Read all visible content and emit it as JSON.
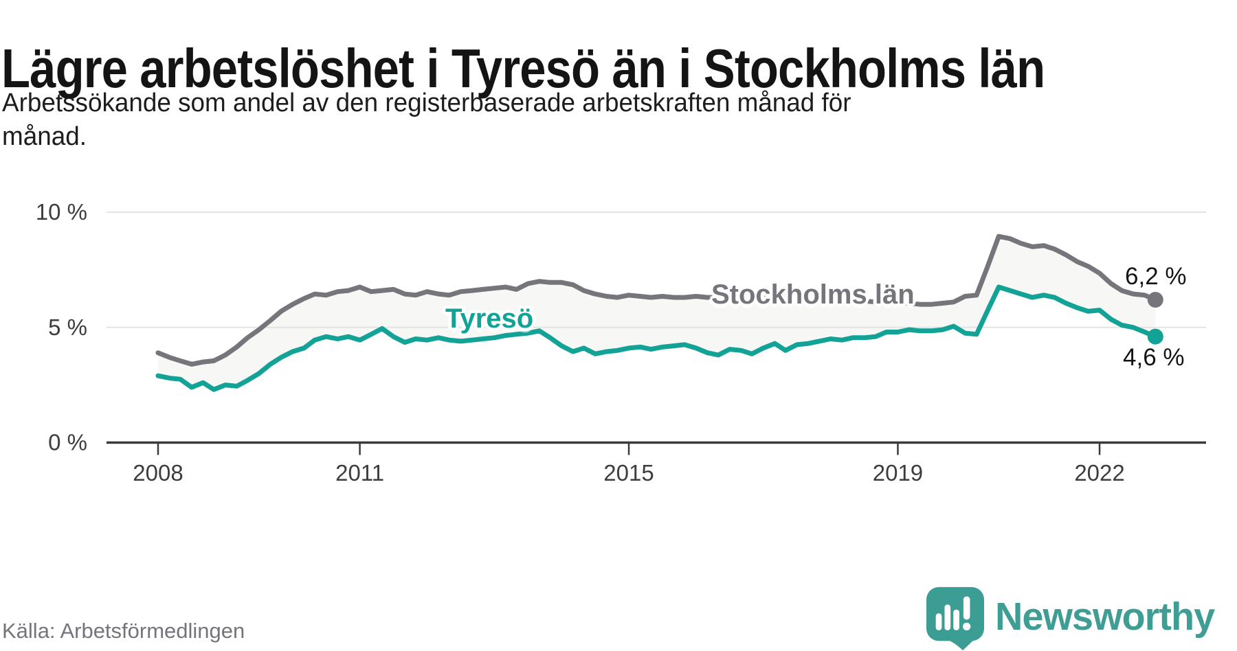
{
  "header": {
    "title": "Lägre arbetslöshet i Tyresö än i Stockholms län",
    "subtitle_lines": [
      "Arbetssökande som andel av den registerbaserade arbetskraften månad för",
      "månad."
    ]
  },
  "footer": {
    "source": "Källa: Arbetsförmedlingen",
    "brand": "Newsworthy",
    "logo_icon": "speech-bubble-bar-chart-exclamation"
  },
  "colors": {
    "tyreso_teal": "#12A296",
    "stockholm_gray": "#76757B",
    "axis": "#3A3A3A",
    "gridline": "#E4E4E4",
    "band_fill": "#F7F7F5",
    "logo_teal": "#3C9D94",
    "text_dark": "#141414",
    "source_gray": "#75747C"
  },
  "chart_data": {
    "type": "line",
    "title": "Lägre arbetslöshet i Tyresö än i Stockholms län",
    "subtitle": "Arbetssökande som andel av den registerbaserade arbetskraften månad för månad.",
    "xlabel": "",
    "ylabel": "",
    "x_unit": "decimal_year",
    "y_unit": "percent",
    "x_range": [
      2008.0,
      2022.92
    ],
    "y_range": [
      0,
      10.5
    ],
    "grid": true,
    "legend_position": "inline-on-line",
    "band_fill": "#F7F7F5",
    "x_ticks": [
      {
        "year": 2008,
        "label": "2008"
      },
      {
        "year": 2011,
        "label": "2011"
      },
      {
        "year": 2015,
        "label": "2015"
      },
      {
        "year": 2019,
        "label": "2019"
      },
      {
        "year": 2022,
        "label": "2022"
      }
    ],
    "y_ticks": [
      {
        "value": 0,
        "label": "0 %"
      },
      {
        "value": 5,
        "label": "5 %"
      },
      {
        "value": 10,
        "label": "10 %"
      }
    ],
    "series": [
      {
        "name": "Stockholms län",
        "color": "#76757B",
        "end_label": "6,2 %",
        "end_value": 6.2,
        "points": [
          [
            2008.0,
            3.9
          ],
          [
            2008.17,
            3.7
          ],
          [
            2008.33,
            3.55
          ],
          [
            2008.5,
            3.4
          ],
          [
            2008.67,
            3.5
          ],
          [
            2008.83,
            3.55
          ],
          [
            2009.0,
            3.8
          ],
          [
            2009.17,
            4.15
          ],
          [
            2009.33,
            4.55
          ],
          [
            2009.5,
            4.9
          ],
          [
            2009.67,
            5.3
          ],
          [
            2009.83,
            5.7
          ],
          [
            2010.0,
            6.0
          ],
          [
            2010.17,
            6.25
          ],
          [
            2010.33,
            6.45
          ],
          [
            2010.5,
            6.4
          ],
          [
            2010.67,
            6.55
          ],
          [
            2010.83,
            6.6
          ],
          [
            2011.0,
            6.75
          ],
          [
            2011.17,
            6.55
          ],
          [
            2011.33,
            6.6
          ],
          [
            2011.5,
            6.65
          ],
          [
            2011.67,
            6.45
          ],
          [
            2011.83,
            6.4
          ],
          [
            2012.0,
            6.55
          ],
          [
            2012.17,
            6.45
          ],
          [
            2012.33,
            6.4
          ],
          [
            2012.5,
            6.55
          ],
          [
            2012.67,
            6.6
          ],
          [
            2012.83,
            6.65
          ],
          [
            2013.0,
            6.7
          ],
          [
            2013.17,
            6.75
          ],
          [
            2013.33,
            6.65
          ],
          [
            2013.5,
            6.9
          ],
          [
            2013.67,
            7.0
          ],
          [
            2013.83,
            6.95
          ],
          [
            2014.0,
            6.95
          ],
          [
            2014.17,
            6.85
          ],
          [
            2014.33,
            6.6
          ],
          [
            2014.5,
            6.45
          ],
          [
            2014.67,
            6.35
          ],
          [
            2014.83,
            6.3
          ],
          [
            2015.0,
            6.4
          ],
          [
            2015.17,
            6.35
          ],
          [
            2015.33,
            6.3
          ],
          [
            2015.5,
            6.35
          ],
          [
            2015.67,
            6.3
          ],
          [
            2015.83,
            6.3
          ],
          [
            2016.0,
            6.35
          ],
          [
            2016.17,
            6.3
          ],
          [
            2016.33,
            6.3
          ],
          [
            2016.5,
            6.35
          ],
          [
            2016.67,
            6.3
          ],
          [
            2016.83,
            6.25
          ],
          [
            2017.0,
            6.3
          ],
          [
            2017.17,
            6.25
          ],
          [
            2017.33,
            6.2
          ],
          [
            2017.5,
            6.25
          ],
          [
            2017.67,
            6.3
          ],
          [
            2017.83,
            6.25
          ],
          [
            2018.0,
            6.2
          ],
          [
            2018.17,
            6.15
          ],
          [
            2018.33,
            6.1
          ],
          [
            2018.5,
            6.15
          ],
          [
            2018.67,
            6.1
          ],
          [
            2018.83,
            6.05
          ],
          [
            2019.0,
            6.1
          ],
          [
            2019.17,
            6.05
          ],
          [
            2019.33,
            6.0
          ],
          [
            2019.5,
            6.0
          ],
          [
            2019.67,
            6.05
          ],
          [
            2019.83,
            6.1
          ],
          [
            2020.0,
            6.35
          ],
          [
            2020.17,
            6.4
          ],
          [
            2020.33,
            7.6
          ],
          [
            2020.5,
            8.95
          ],
          [
            2020.67,
            8.85
          ],
          [
            2020.83,
            8.65
          ],
          [
            2021.0,
            8.5
          ],
          [
            2021.17,
            8.55
          ],
          [
            2021.33,
            8.4
          ],
          [
            2021.5,
            8.15
          ],
          [
            2021.67,
            7.85
          ],
          [
            2021.83,
            7.65
          ],
          [
            2022.0,
            7.35
          ],
          [
            2022.17,
            6.9
          ],
          [
            2022.33,
            6.6
          ],
          [
            2022.5,
            6.45
          ],
          [
            2022.67,
            6.4
          ],
          [
            2022.83,
            6.2
          ]
        ]
      },
      {
        "name": "Tyresö",
        "color": "#12A296",
        "end_label": "4,6 %",
        "end_value": 4.6,
        "points": [
          [
            2008.0,
            2.9
          ],
          [
            2008.17,
            2.8
          ],
          [
            2008.33,
            2.75
          ],
          [
            2008.5,
            2.4
          ],
          [
            2008.67,
            2.6
          ],
          [
            2008.83,
            2.3
          ],
          [
            2009.0,
            2.5
          ],
          [
            2009.17,
            2.45
          ],
          [
            2009.33,
            2.7
          ],
          [
            2009.5,
            3.0
          ],
          [
            2009.67,
            3.4
          ],
          [
            2009.83,
            3.7
          ],
          [
            2010.0,
            3.95
          ],
          [
            2010.17,
            4.1
          ],
          [
            2010.33,
            4.45
          ],
          [
            2010.5,
            4.6
          ],
          [
            2010.67,
            4.5
          ],
          [
            2010.83,
            4.6
          ],
          [
            2011.0,
            4.45
          ],
          [
            2011.17,
            4.7
          ],
          [
            2011.33,
            4.95
          ],
          [
            2011.5,
            4.6
          ],
          [
            2011.67,
            4.35
          ],
          [
            2011.83,
            4.5
          ],
          [
            2012.0,
            4.45
          ],
          [
            2012.17,
            4.55
          ],
          [
            2012.33,
            4.45
          ],
          [
            2012.5,
            4.4
          ],
          [
            2012.67,
            4.45
          ],
          [
            2012.83,
            4.5
          ],
          [
            2013.0,
            4.55
          ],
          [
            2013.17,
            4.65
          ],
          [
            2013.33,
            4.7
          ],
          [
            2013.5,
            4.75
          ],
          [
            2013.67,
            4.85
          ],
          [
            2013.83,
            4.55
          ],
          [
            2014.0,
            4.2
          ],
          [
            2014.17,
            3.95
          ],
          [
            2014.33,
            4.1
          ],
          [
            2014.5,
            3.85
          ],
          [
            2014.67,
            3.95
          ],
          [
            2014.83,
            4.0
          ],
          [
            2015.0,
            4.1
          ],
          [
            2015.17,
            4.15
          ],
          [
            2015.33,
            4.05
          ],
          [
            2015.5,
            4.15
          ],
          [
            2015.67,
            4.2
          ],
          [
            2015.83,
            4.25
          ],
          [
            2016.0,
            4.1
          ],
          [
            2016.17,
            3.9
          ],
          [
            2016.33,
            3.8
          ],
          [
            2016.5,
            4.05
          ],
          [
            2016.67,
            4.0
          ],
          [
            2016.83,
            3.85
          ],
          [
            2017.0,
            4.1
          ],
          [
            2017.17,
            4.3
          ],
          [
            2017.33,
            4.0
          ],
          [
            2017.5,
            4.25
          ],
          [
            2017.67,
            4.3
          ],
          [
            2017.83,
            4.4
          ],
          [
            2018.0,
            4.5
          ],
          [
            2018.17,
            4.45
          ],
          [
            2018.33,
            4.55
          ],
          [
            2018.5,
            4.55
          ],
          [
            2018.67,
            4.6
          ],
          [
            2018.83,
            4.8
          ],
          [
            2019.0,
            4.8
          ],
          [
            2019.17,
            4.9
          ],
          [
            2019.33,
            4.85
          ],
          [
            2019.5,
            4.85
          ],
          [
            2019.67,
            4.9
          ],
          [
            2019.83,
            5.05
          ],
          [
            2020.0,
            4.75
          ],
          [
            2020.17,
            4.7
          ],
          [
            2020.33,
            5.7
          ],
          [
            2020.5,
            6.75
          ],
          [
            2020.67,
            6.6
          ],
          [
            2020.83,
            6.45
          ],
          [
            2021.0,
            6.3
          ],
          [
            2021.17,
            6.4
          ],
          [
            2021.33,
            6.3
          ],
          [
            2021.5,
            6.05
          ],
          [
            2021.67,
            5.85
          ],
          [
            2021.83,
            5.7
          ],
          [
            2022.0,
            5.75
          ],
          [
            2022.17,
            5.35
          ],
          [
            2022.33,
            5.1
          ],
          [
            2022.5,
            5.0
          ],
          [
            2022.67,
            4.8
          ],
          [
            2022.83,
            4.6
          ]
        ]
      }
    ]
  }
}
